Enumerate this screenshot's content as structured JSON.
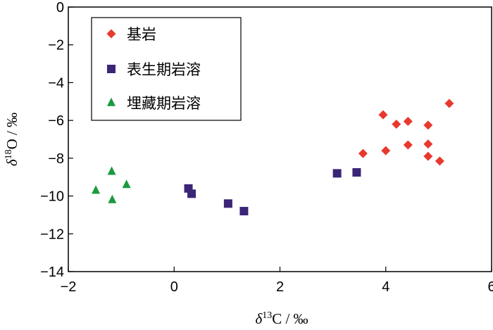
{
  "chart_data": {
    "type": "scatter",
    "xlabel": {
      "prefix": "δ",
      "sup": "13",
      "suffix": "C / ‰"
    },
    "ylabel": {
      "prefix": "δ",
      "sup": "18",
      "suffix": "O / ‰"
    },
    "xlim": [
      -2,
      6
    ],
    "ylim": [
      -14,
      0
    ],
    "xticks": [
      -2,
      0,
      2,
      4,
      6
    ],
    "xtick_labels": [
      "−2",
      "0",
      "2",
      "4",
      "6"
    ],
    "yticks": [
      0,
      -2,
      -4,
      -6,
      -8,
      -10,
      -12,
      -14
    ],
    "ytick_labels": [
      "0",
      "−2",
      "−4",
      "−6",
      "−8",
      "−10",
      "−12",
      "−14"
    ],
    "grid": false,
    "legend_position": "top-left",
    "series": [
      {
        "name": "基岩",
        "marker": "diamond",
        "color": "#e8392e",
        "points": [
          [
            3.95,
            -5.7
          ],
          [
            4.42,
            -6.05
          ],
          [
            5.2,
            -5.1
          ],
          [
            4.2,
            -6.2
          ],
          [
            4.8,
            -6.25
          ],
          [
            3.57,
            -7.75
          ],
          [
            4.0,
            -7.6
          ],
          [
            4.42,
            -7.3
          ],
          [
            4.8,
            -7.25
          ],
          [
            4.8,
            -7.9
          ],
          [
            5.02,
            -8.15
          ]
        ]
      },
      {
        "name": "表生期岩溶",
        "marker": "square",
        "color": "#3a2577",
        "points": [
          [
            0.27,
            -9.6
          ],
          [
            0.33,
            -9.88
          ],
          [
            1.02,
            -10.4
          ],
          [
            1.32,
            -10.8
          ],
          [
            3.08,
            -8.8
          ],
          [
            3.45,
            -8.75
          ]
        ]
      },
      {
        "name": "埋藏期岩溶",
        "marker": "triangle",
        "color": "#1a9a3e",
        "points": [
          [
            -1.48,
            -9.7
          ],
          [
            -1.18,
            -8.7
          ],
          [
            -0.9,
            -9.4
          ],
          [
            -1.17,
            -10.2
          ]
        ]
      }
    ]
  }
}
